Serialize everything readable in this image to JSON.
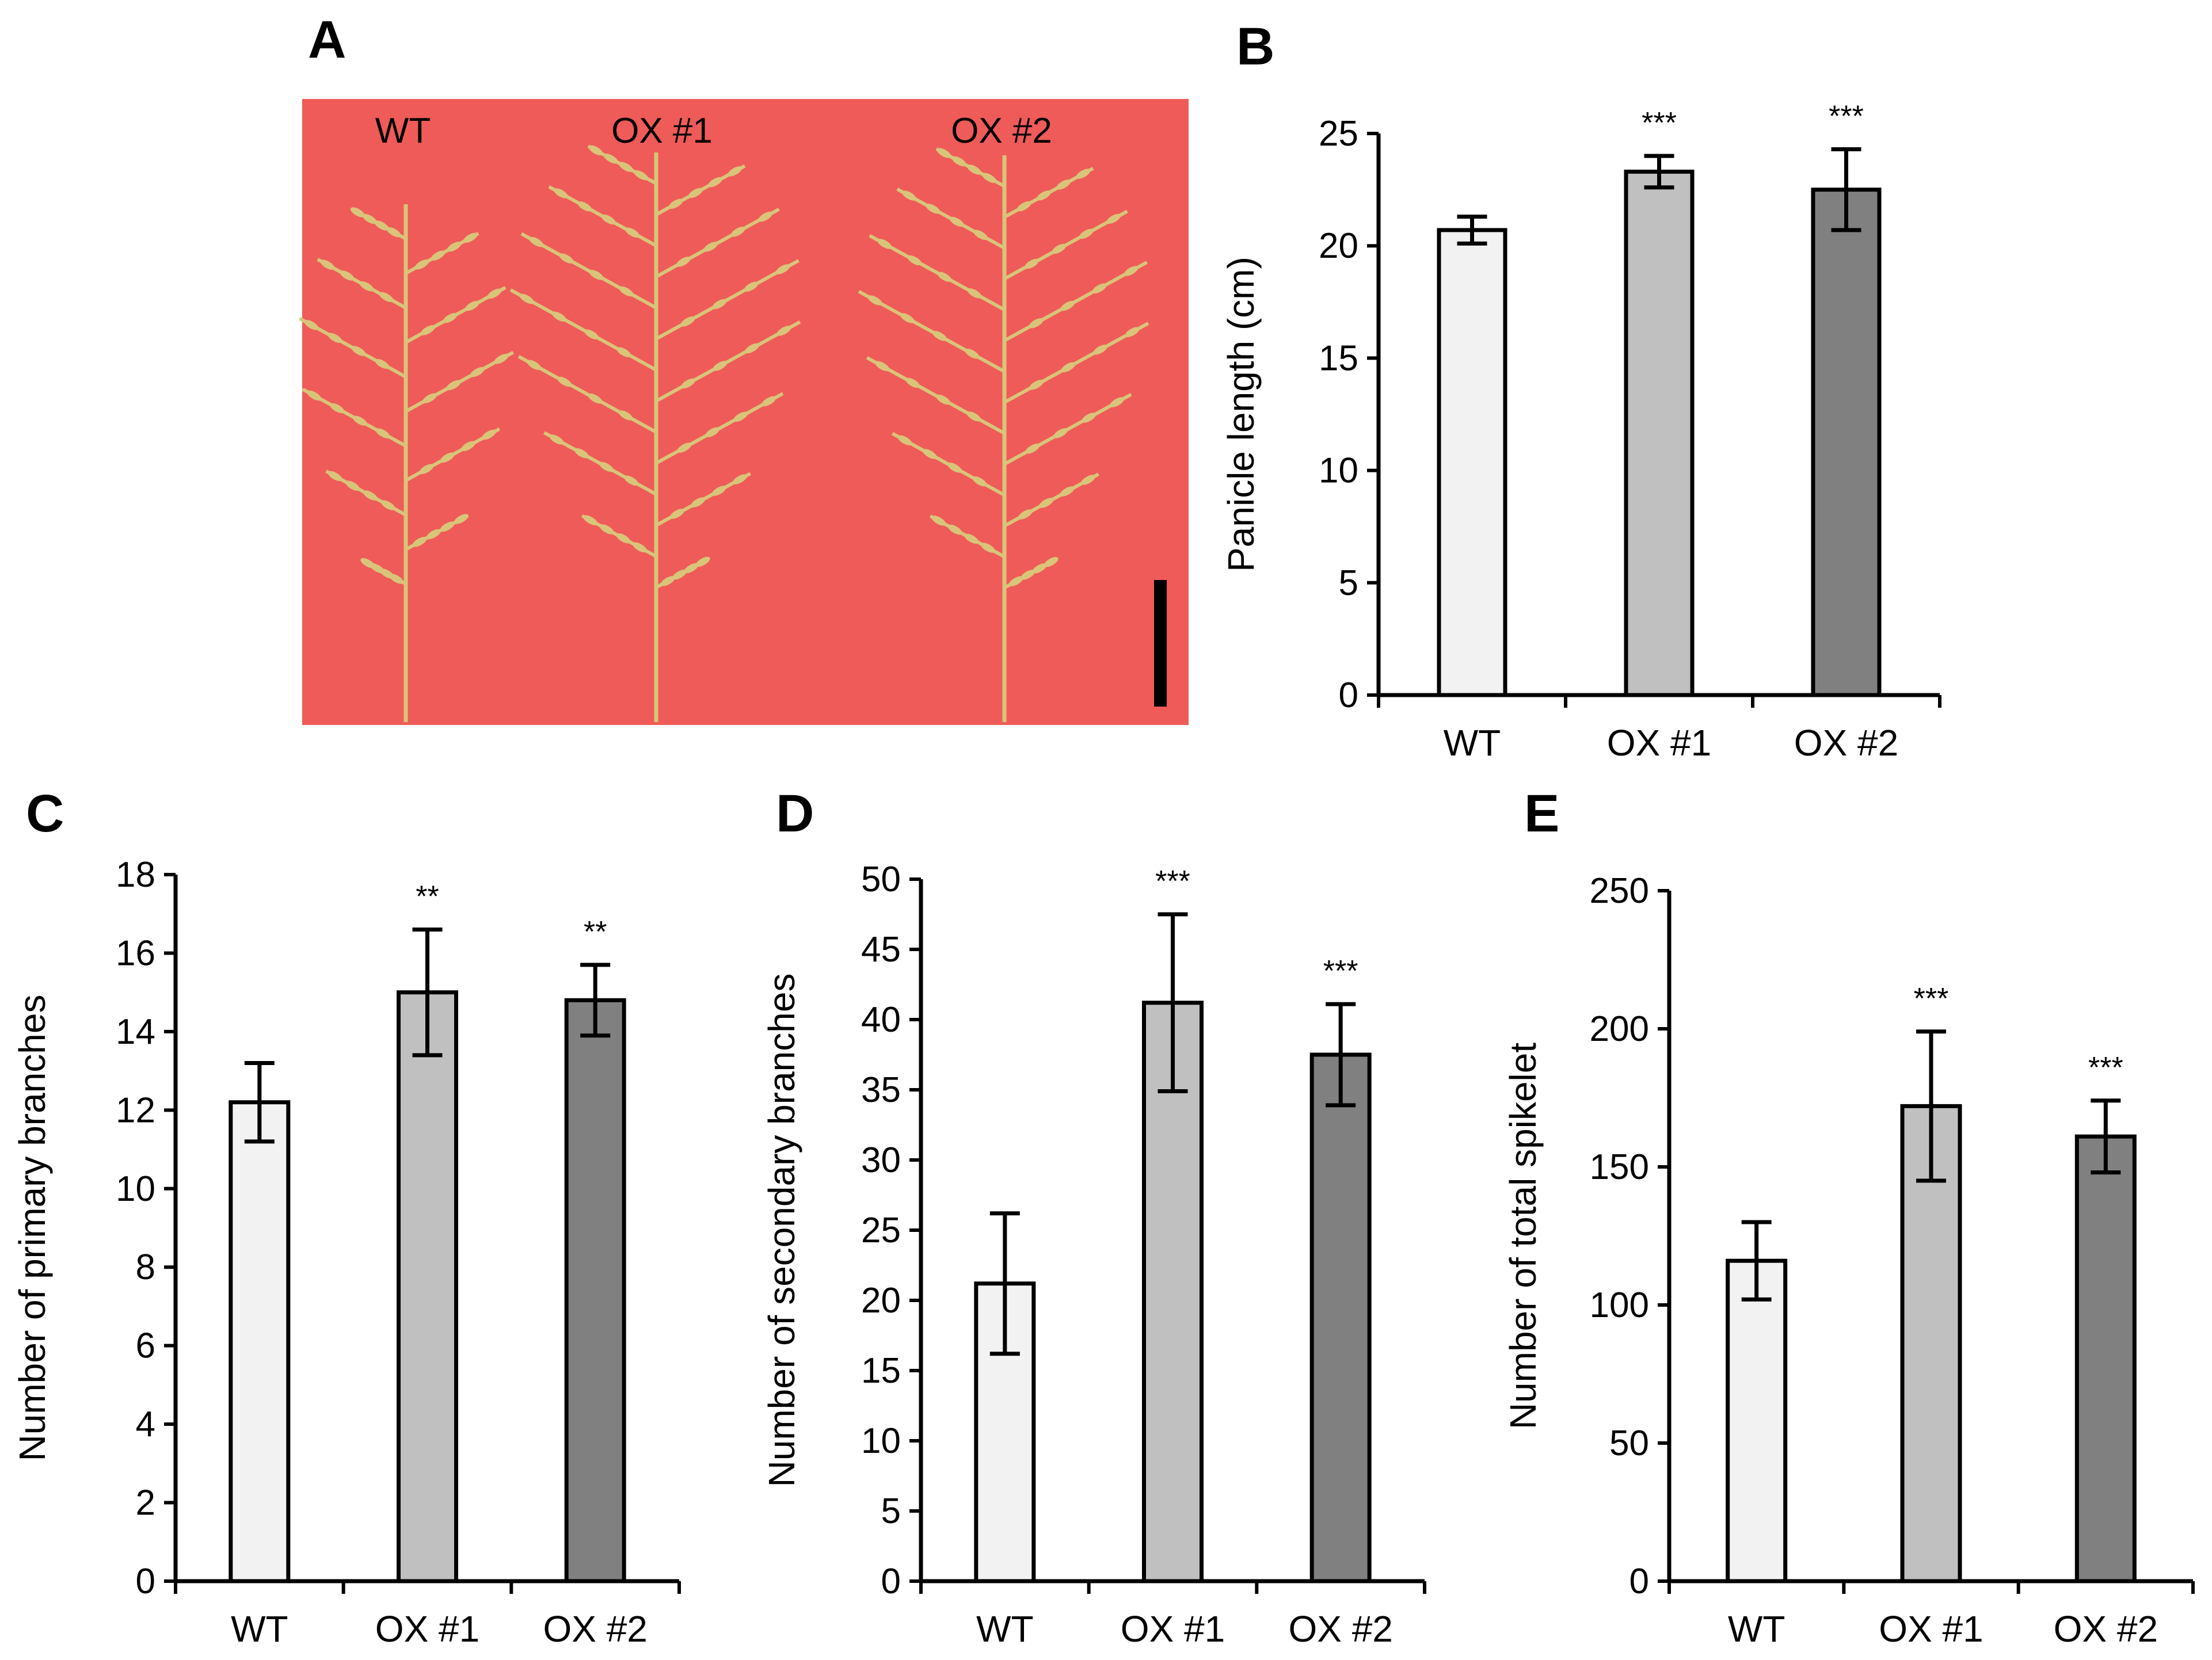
{
  "panels": {
    "A": {
      "letter": "A",
      "labels": [
        "WT",
        "OX #1",
        "OX #2"
      ]
    },
    "B": {
      "letter": "B"
    },
    "C": {
      "letter": "C"
    },
    "D": {
      "letter": "D"
    },
    "E": {
      "letter": "E"
    }
  },
  "colors": {
    "WT": "#f2f2f2",
    "OX #1": "#c0c0c0",
    "OX #2": "#808080",
    "photo_background": "#ef5b58",
    "panicle": "#d9c47a"
  },
  "chart_data": [
    {
      "id": "B",
      "type": "bar",
      "categories": [
        "WT",
        "OX #1",
        "OX #2"
      ],
      "values": [
        20.7,
        23.3,
        22.5
      ],
      "errors": [
        0.6,
        0.7,
        1.8
      ],
      "significance": [
        "",
        "***",
        "***"
      ],
      "ylabel": "Panicle length (cm)",
      "ylim": [
        0,
        25
      ],
      "yticks": [
        0,
        5,
        10,
        15,
        20,
        25
      ]
    },
    {
      "id": "C",
      "type": "bar",
      "categories": [
        "WT",
        "OX #1",
        "OX #2"
      ],
      "values": [
        12.2,
        15.0,
        14.8
      ],
      "errors": [
        1.0,
        1.6,
        0.9
      ],
      "significance": [
        "",
        "**",
        "**"
      ],
      "ylabel": "Number of primary branches",
      "ylim": [
        0,
        18
      ],
      "yticks": [
        0,
        2,
        4,
        6,
        8,
        10,
        12,
        14,
        16,
        18
      ]
    },
    {
      "id": "D",
      "type": "bar",
      "categories": [
        "WT",
        "OX #1",
        "OX #2"
      ],
      "values": [
        21.2,
        41.2,
        37.5
      ],
      "errors": [
        5.0,
        6.3,
        3.6
      ],
      "significance": [
        "",
        "***",
        "***"
      ],
      "ylabel": "Number of secondary branches",
      "ylim": [
        0,
        50
      ],
      "yticks": [
        0,
        5,
        10,
        15,
        20,
        25,
        30,
        35,
        40,
        45,
        50
      ]
    },
    {
      "id": "E",
      "type": "bar",
      "categories": [
        "WT",
        "OX #1",
        "OX #2"
      ],
      "values": [
        116,
        172,
        161
      ],
      "errors": [
        14,
        27,
        13
      ],
      "significance": [
        "",
        "***",
        "***"
      ],
      "ylabel": "Number of total spikelet",
      "ylim": [
        0,
        250
      ],
      "yticks": [
        0,
        50,
        100,
        150,
        200,
        250
      ]
    }
  ]
}
